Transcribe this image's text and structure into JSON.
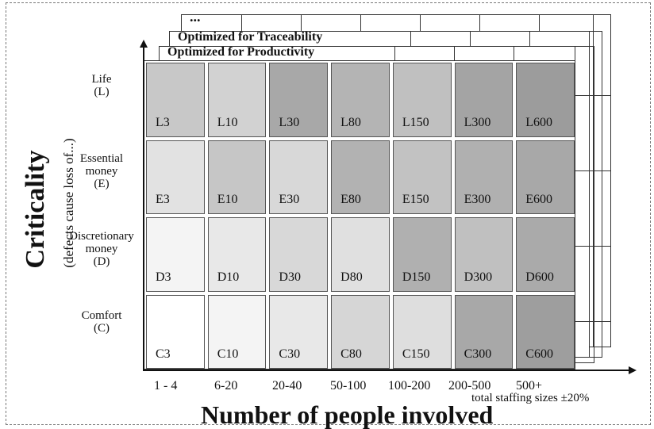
{
  "layers": {
    "back": "...",
    "middle": "Optimized for Traceability",
    "front": "Optimized for Productivity"
  },
  "y_axis": {
    "title": "Criticality",
    "subtitle": "(defects cause loss of...)"
  },
  "x_axis": {
    "title": "Number of people involved",
    "note": "total staffing sizes ±20%",
    "columns": [
      "1 - 4",
      "6-20",
      "20-40",
      "50-100",
      "100-200",
      "200-500",
      "500+"
    ]
  },
  "rows": [
    {
      "label_lines": [
        "Life",
        "(L)"
      ],
      "cells": [
        "L3",
        "L10",
        "L30",
        "L80",
        "L150",
        "L300",
        "L600"
      ],
      "shades": [
        "#c8c8c8",
        "#d2d2d2",
        "#a8a8a8",
        "#b4b4b4",
        "#c0c0c0",
        "#a4a4a4",
        "#9c9c9c"
      ]
    },
    {
      "label_lines": [
        "Essential",
        "money",
        "(E)"
      ],
      "cells": [
        "E3",
        "E10",
        "E30",
        "E80",
        "E150",
        "E300",
        "E600"
      ],
      "shades": [
        "#e2e2e2",
        "#c6c6c6",
        "#d8d8d8",
        "#b2b2b2",
        "#c2c2c2",
        "#b0b0b0",
        "#a8a8a8"
      ]
    },
    {
      "label_lines": [
        "Discretionary",
        "money",
        "(D)"
      ],
      "cells": [
        "D3",
        "D10",
        "D30",
        "D80",
        "D150",
        "D300",
        "D600"
      ],
      "shades": [
        "#f4f4f4",
        "#e8e8e8",
        "#d8d8d8",
        "#e0e0e0",
        "#b0b0b0",
        "#c0c0c0",
        "#aaaaaa"
      ]
    },
    {
      "label_lines": [
        "Comfort",
        "(C)"
      ],
      "cells": [
        "C3",
        "C10",
        "C30",
        "C80",
        "C150",
        "C300",
        "C600"
      ],
      "shades": [
        "#ffffff",
        "#f4f4f4",
        "#e8e8e8",
        "#d6d6d6",
        "#dedede",
        "#a8a8a8",
        "#9e9e9e"
      ]
    }
  ]
}
